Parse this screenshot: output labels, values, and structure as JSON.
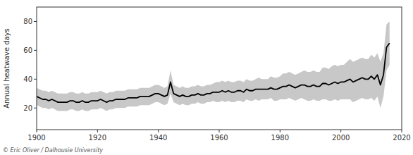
{
  "chart_data": {
    "type": "line",
    "ylabel": "Annual heatwave days",
    "annotation": "© Eric Oliver / Dalhousie University",
    "xlim": [
      1900,
      2020
    ],
    "ylim": [
      5,
      90
    ],
    "xticks": [
      1900,
      1920,
      1940,
      1960,
      1980,
      2000,
      2020
    ],
    "yticks": [
      20,
      40,
      60,
      80
    ],
    "grid": false,
    "x": [
      1900,
      1901,
      1902,
      1903,
      1904,
      1905,
      1906,
      1907,
      1908,
      1909,
      1910,
      1911,
      1912,
      1913,
      1914,
      1915,
      1916,
      1917,
      1918,
      1919,
      1920,
      1921,
      1922,
      1923,
      1924,
      1925,
      1926,
      1927,
      1928,
      1929,
      1930,
      1931,
      1932,
      1933,
      1934,
      1935,
      1936,
      1937,
      1938,
      1939,
      1940,
      1941,
      1942,
      1943,
      1944,
      1945,
      1946,
      1947,
      1948,
      1949,
      1950,
      1951,
      1952,
      1953,
      1954,
      1955,
      1956,
      1957,
      1958,
      1959,
      1960,
      1961,
      1962,
      1963,
      1964,
      1965,
      1966,
      1967,
      1968,
      1969,
      1970,
      1971,
      1972,
      1973,
      1974,
      1975,
      1976,
      1977,
      1978,
      1979,
      1980,
      1981,
      1982,
      1983,
      1984,
      1985,
      1986,
      1987,
      1988,
      1989,
      1990,
      1991,
      1992,
      1993,
      1994,
      1995,
      1996,
      1997,
      1998,
      1999,
      2000,
      2001,
      2002,
      2003,
      2004,
      2005,
      2006,
      2007,
      2008,
      2009,
      2010,
      2011,
      2012,
      2013,
      2014,
      2015,
      2016
    ],
    "series": [
      {
        "type": "band",
        "color": "#c8c8c8",
        "upper": [
          34,
          33,
          32,
          32,
          31,
          32,
          31,
          30,
          30,
          30,
          30,
          31,
          31,
          30,
          30,
          31,
          30,
          30,
          31,
          31,
          31,
          32,
          31,
          30,
          31,
          31,
          32,
          32,
          32,
          32,
          33,
          33,
          33,
          33,
          34,
          34,
          34,
          34,
          35,
          36,
          36,
          35,
          34,
          35,
          46,
          36,
          35,
          34,
          35,
          34,
          34,
          35,
          35,
          36,
          35,
          35,
          36,
          36,
          37,
          38,
          38,
          39,
          38,
          39,
          38,
          38,
          39,
          39,
          38,
          40,
          39,
          39,
          40,
          41,
          40,
          40,
          40,
          42,
          41,
          41,
          42,
          44,
          44,
          45,
          44,
          43,
          44,
          45,
          46,
          45,
          45,
          46,
          45,
          45,
          48,
          48,
          47,
          49,
          50,
          49,
          50,
          50,
          52,
          54,
          52,
          53,
          54,
          55,
          54,
          54,
          57,
          55,
          58,
          52,
          58,
          78,
          80
        ],
        "lower": [
          22,
          21,
          20,
          20,
          19,
          20,
          19,
          18,
          18,
          18,
          18,
          19,
          19,
          18,
          18,
          19,
          18,
          18,
          19,
          19,
          19,
          20,
          19,
          18,
          19,
          19,
          20,
          20,
          20,
          20,
          21,
          21,
          21,
          21,
          22,
          22,
          22,
          22,
          23,
          24,
          24,
          23,
          22,
          23,
          30,
          24,
          23,
          22,
          23,
          22,
          22,
          23,
          23,
          24,
          23,
          23,
          24,
          24,
          25,
          24,
          24,
          25,
          24,
          25,
          24,
          24,
          25,
          25,
          24,
          26,
          25,
          25,
          26,
          25,
          26,
          26,
          26,
          27,
          25,
          25,
          26,
          26,
          26,
          27,
          26,
          25,
          26,
          27,
          26,
          25,
          25,
          26,
          25,
          25,
          26,
          26,
          25,
          25,
          26,
          25,
          26,
          26,
          26,
          26,
          24,
          25,
          26,
          27,
          26,
          26,
          27,
          25,
          28,
          20,
          28,
          46,
          50
        ]
      },
      {
        "type": "line",
        "color": "#000000",
        "values": [
          28,
          27,
          26,
          26,
          25,
          26,
          25,
          24,
          24,
          24,
          24,
          25,
          25,
          24,
          24,
          25,
          24,
          24,
          25,
          25,
          25,
          26,
          25,
          24,
          25,
          25,
          26,
          26,
          26,
          26,
          27,
          27,
          27,
          27,
          28,
          28,
          28,
          28,
          29,
          30,
          30,
          29,
          28,
          29,
          38,
          30,
          29,
          28,
          29,
          28,
          28,
          29,
          29,
          30,
          29,
          29,
          30,
          30,
          31,
          31,
          31,
          32,
          31,
          32,
          31,
          31,
          32,
          32,
          31,
          33,
          32,
          32,
          33,
          33,
          33,
          33,
          33,
          34,
          33,
          33,
          34,
          35,
          35,
          36,
          35,
          34,
          35,
          36,
          36,
          35,
          35,
          36,
          35,
          35,
          37,
          37,
          36,
          37,
          38,
          37,
          38,
          38,
          39,
          40,
          38,
          39,
          40,
          41,
          40,
          40,
          42,
          40,
          43,
          36,
          43,
          62,
          65
        ]
      }
    ]
  }
}
